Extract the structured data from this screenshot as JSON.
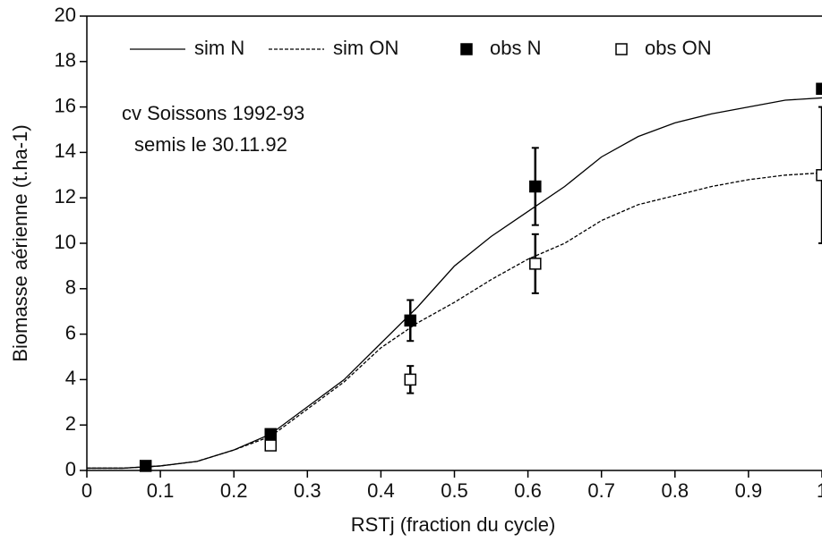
{
  "chart_data": {
    "type": "line",
    "xlabel": "RSTj (fraction du cycle)",
    "ylabel": "Biomasse aérienne (t.ha-1)",
    "annotations": [
      "cv Soissons 1992-93",
      "semis le 30.11.92"
    ],
    "xlim": [
      0,
      1
    ],
    "xticks": [
      0,
      0.1,
      0.2,
      0.3,
      0.4,
      0.5,
      0.6,
      0.7,
      0.8,
      0.9,
      1
    ],
    "ylim": [
      0,
      20
    ],
    "yticks": [
      0,
      2,
      4,
      6,
      8,
      10,
      12,
      14,
      16,
      18,
      20
    ],
    "series": [
      {
        "name": "sim N",
        "style": "solid",
        "color": "#000000",
        "x": [
          0,
          0.05,
          0.1,
          0.15,
          0.2,
          0.25,
          0.3,
          0.35,
          0.4,
          0.45,
          0.5,
          0.55,
          0.6,
          0.65,
          0.7,
          0.75,
          0.8,
          0.85,
          0.9,
          0.95,
          1
        ],
        "values": [
          0.1,
          0.1,
          0.2,
          0.4,
          0.9,
          1.6,
          2.8,
          4.0,
          5.6,
          7.2,
          9.0,
          10.3,
          11.4,
          12.5,
          13.8,
          14.7,
          15.3,
          15.7,
          16.0,
          16.3,
          16.4
        ]
      },
      {
        "name": "sim ON",
        "style": "dashed",
        "color": "#000000",
        "x": [
          0,
          0.05,
          0.1,
          0.15,
          0.2,
          0.25,
          0.3,
          0.35,
          0.4,
          0.45,
          0.5,
          0.55,
          0.6,
          0.65,
          0.7,
          0.75,
          0.8,
          0.85,
          0.9,
          0.95,
          1
        ],
        "values": [
          0.1,
          0.1,
          0.2,
          0.4,
          0.9,
          1.5,
          2.7,
          3.9,
          5.4,
          6.5,
          7.4,
          8.4,
          9.3,
          10.0,
          11.0,
          11.7,
          12.1,
          12.5,
          12.8,
          13.0,
          13.1
        ]
      },
      {
        "name": "obs N",
        "style": "filled",
        "color": "#000000",
        "x": [
          0.08,
          0.25,
          0.44,
          0.61,
          1
        ],
        "values": [
          0.2,
          1.6,
          6.6,
          12.5,
          16.8
        ],
        "errors": [
          null,
          0.2,
          0.9,
          1.7,
          null
        ]
      },
      {
        "name": "obs ON",
        "style": "open",
        "color": "#000000",
        "x": [
          0.25,
          0.44,
          0.61,
          1
        ],
        "values": [
          1.1,
          4.0,
          9.1,
          13.0
        ],
        "errors": [
          null,
          0.6,
          1.3,
          3.0
        ]
      }
    ]
  }
}
